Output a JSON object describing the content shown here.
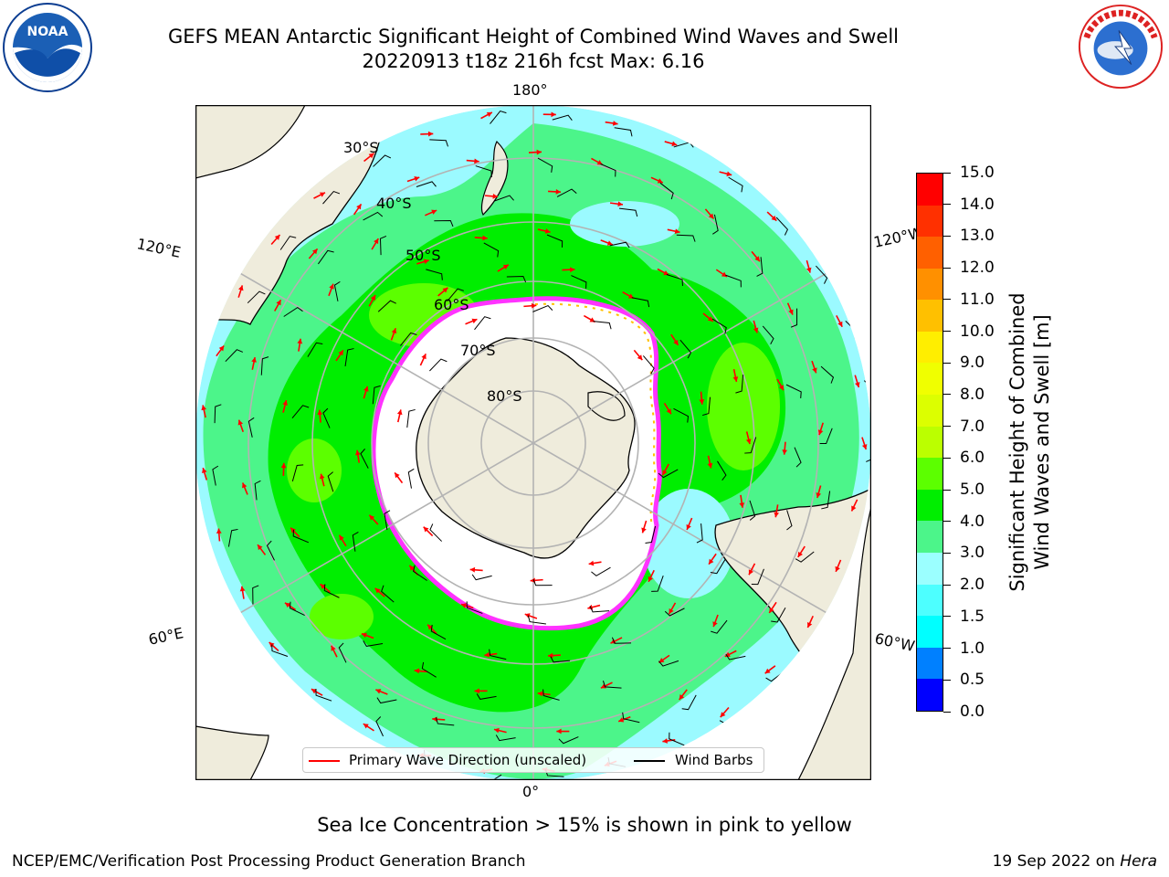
{
  "header": {
    "title_line1": "GEFS MEAN Antarctic Significant Height of Combined Wind Waves and Swell",
    "title_line2": "20220913 t18z 216h fcst   Max: 6.16"
  },
  "logos": {
    "left": "NOAA",
    "right": "NATIONAL WEATHER SERVICE"
  },
  "map": {
    "projection": "south-polar-stereographic",
    "longitude_labels": {
      "top": "180°",
      "upper_left": "120°E",
      "upper_right": "120°W",
      "lower_left": "60°E",
      "lower_right": "60°W",
      "bottom": "0°"
    },
    "latitude_labels": [
      "30°S",
      "40°S",
      "50°S",
      "60°S",
      "70°S",
      "80°S"
    ],
    "colors": {
      "land": "#efecdc",
      "ocean_low": "#9bfaff",
      "ocean_mid": "#4cf58a",
      "ocean_high": "#00f000",
      "ice": "#ffffff",
      "ice_edge": "#ff33ff",
      "wave_arrow": "#ff0000",
      "wind_barb": "#000000",
      "grid": "#b3b3b3"
    }
  },
  "legend": {
    "wave_label": "Primary Wave Direction (unscaled)",
    "barb_label": "Wind Barbs"
  },
  "colorbar": {
    "label_line1": "Significant Height of Combined",
    "label_line2": "Wind Waves and Swell [m]",
    "ticks": [
      "0.0",
      "0.5",
      "1.0",
      "1.5",
      "2.0",
      "3.0",
      "4.0",
      "5.0",
      "6.0",
      "7.0",
      "8.0",
      "9.0",
      "10.0",
      "11.0",
      "12.0",
      "13.0",
      "14.0",
      "15.0"
    ],
    "colors": [
      "#0000ff",
      "#0080ff",
      "#00ffff",
      "#4dffff",
      "#9bffff",
      "#4cf58a",
      "#00ee00",
      "#5cff00",
      "#bbff00",
      "#dcff00",
      "#f0ff00",
      "#ffee00",
      "#ffc000",
      "#ff9000",
      "#ff6000",
      "#ff3000",
      "#ff0000"
    ]
  },
  "footer": {
    "sea_ice_note": "Sea Ice Concentration > 15% is shown in pink to yellow",
    "left": "NCEP/EMC/Verification Post Processing Product Generation Branch",
    "right_date": "19 Sep 2022 on",
    "right_machine": "Hera"
  }
}
